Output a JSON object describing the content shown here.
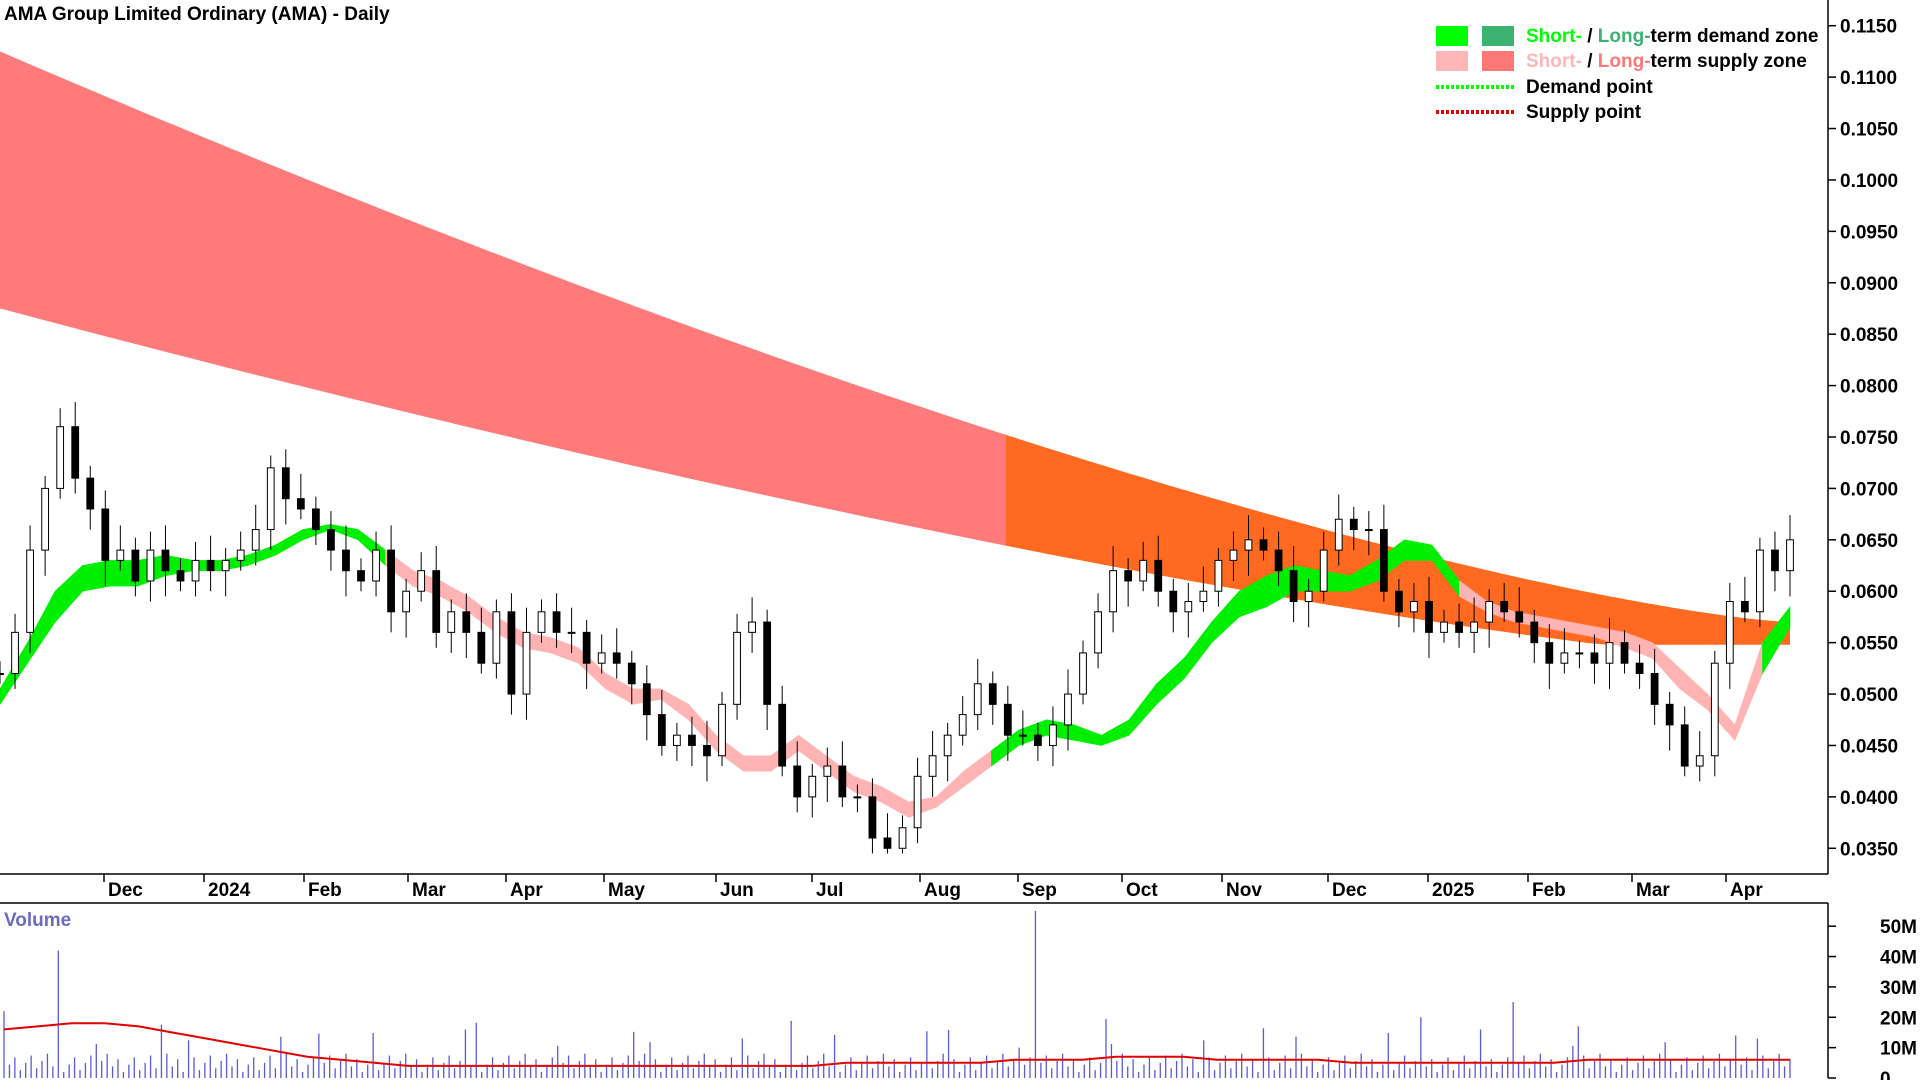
{
  "chart_data": {
    "type": "candlestick",
    "title": "AMA Group Limited Ordinary (AMA) - Daily",
    "price_axis": {
      "ylim": [
        0.0325,
        0.1175
      ],
      "ticks": [
        "0.1150",
        "0.1100",
        "0.1050",
        "0.1000",
        "0.0950",
        "0.0900",
        "0.0850",
        "0.0800",
        "0.0750",
        "0.0700",
        "0.0650",
        "0.0600",
        "0.0550",
        "0.0500",
        "0.0450",
        "0.0400",
        "0.0350"
      ]
    },
    "x_axis": {
      "ticks": [
        "Dec",
        "2024",
        "Feb",
        "Mar",
        "Apr",
        "May",
        "Jun",
        "Jul",
        "Aug",
        "Sep",
        "Oct",
        "Nov",
        "Dec",
        "2025",
        "Feb",
        "Mar",
        "Apr"
      ]
    },
    "legend": {
      "placement": "top-right",
      "rows": [
        {
          "prefix": "Short-",
          "sep": " / ",
          "mid": "Long-",
          "suffix": "term demand zone",
          "colors": [
            "#00ff00",
            "#3cb371"
          ]
        },
        {
          "prefix": "Short-",
          "sep": " / ",
          "mid": "Long-",
          "suffix": "term supply zone",
          "colors": [
            "#ffb6b6",
            "#ff7777"
          ]
        },
        {
          "text": "Demand point",
          "color": "#00ff00"
        },
        {
          "text": "Supply point",
          "color": "#e00000"
        }
      ]
    },
    "long_term_zone": {
      "upper_start": 0.1125,
      "upper_end": 0.057,
      "lower_start": 0.0875,
      "lower_end": 0.0548,
      "cross_to_demand_index": 0.56
    },
    "series": [
      {
        "name": "price",
        "close": [
          0.052,
          0.056,
          0.064,
          0.07,
          0.076,
          0.071,
          0.068,
          0.063,
          0.064,
          0.061,
          0.064,
          0.062,
          0.061,
          0.063,
          0.062,
          0.063,
          0.064,
          0.066,
          0.072,
          0.069,
          0.068,
          0.066,
          0.064,
          0.062,
          0.061,
          0.064,
          0.058,
          0.06,
          0.062,
          0.056,
          0.058,
          0.056,
          0.053,
          0.058,
          0.05,
          0.056,
          0.058,
          0.056,
          0.056,
          0.053,
          0.054,
          0.053,
          0.051,
          0.048,
          0.045,
          0.046,
          0.045,
          0.044,
          0.049,
          0.056,
          0.057,
          0.049,
          0.043,
          0.04,
          0.042,
          0.043,
          0.04,
          0.04,
          0.036,
          0.035,
          0.037,
          0.042,
          0.044,
          0.046,
          0.048,
          0.051,
          0.049,
          0.046,
          0.046,
          0.045,
          0.047,
          0.05,
          0.054,
          0.058,
          0.062,
          0.061,
          0.063,
          0.06,
          0.058,
          0.059,
          0.06,
          0.063,
          0.064,
          0.065,
          0.064,
          0.062,
          0.059,
          0.06,
          0.064,
          0.067,
          0.066,
          0.066,
          0.06,
          0.058,
          0.059,
          0.056,
          0.057,
          0.056,
          0.057,
          0.059,
          0.058,
          0.057,
          0.055,
          0.053,
          0.054,
          0.054,
          0.053,
          0.055,
          0.053,
          0.052,
          0.049,
          0.047,
          0.043,
          0.044,
          0.053,
          0.059,
          0.058,
          0.064,
          0.062,
          0.065
        ],
        "min_wick": 0.0345,
        "max_wick": 0.0825
      },
      {
        "name": "Short-term zone",
        "upper": [
          0.0505,
          0.055,
          0.06,
          0.0625,
          0.063,
          0.063,
          0.0635,
          0.063,
          0.063,
          0.0635,
          0.0645,
          0.066,
          0.0665,
          0.066,
          0.064,
          0.062,
          0.061,
          0.0595,
          0.0575,
          0.056,
          0.0555,
          0.0545,
          0.052,
          0.0505,
          0.0505,
          0.049,
          0.046,
          0.044,
          0.044,
          0.046,
          0.044,
          0.042,
          0.041,
          0.0395,
          0.04,
          0.0425,
          0.0445,
          0.0465,
          0.0475,
          0.047,
          0.046,
          0.0475,
          0.051,
          0.0535,
          0.057,
          0.06,
          0.0615,
          0.0625,
          0.062,
          0.0615,
          0.063,
          0.065,
          0.0645,
          0.061,
          0.059,
          0.058,
          0.0575,
          0.057,
          0.0565,
          0.056,
          0.055,
          0.0525,
          0.05,
          0.047,
          0.055,
          0.0585
        ],
        "lower": [
          0.049,
          0.053,
          0.057,
          0.06,
          0.0605,
          0.0605,
          0.0615,
          0.062,
          0.062,
          0.0625,
          0.0635,
          0.065,
          0.066,
          0.065,
          0.0625,
          0.0605,
          0.0595,
          0.058,
          0.056,
          0.0545,
          0.054,
          0.053,
          0.0505,
          0.049,
          0.0495,
          0.0475,
          0.0445,
          0.0425,
          0.0425,
          0.0445,
          0.0425,
          0.0405,
          0.0395,
          0.038,
          0.039,
          0.041,
          0.043,
          0.045,
          0.046,
          0.0455,
          0.045,
          0.046,
          0.049,
          0.0515,
          0.055,
          0.0575,
          0.0585,
          0.06,
          0.06,
          0.06,
          0.061,
          0.063,
          0.063,
          0.0595,
          0.058,
          0.057,
          0.0565,
          0.056,
          0.0555,
          0.0545,
          0.0535,
          0.0505,
          0.0485,
          0.0455,
          0.052,
          0.0565
        ],
        "demand_flags": [
          1,
          1,
          1,
          1,
          1,
          1,
          1,
          1,
          1,
          1,
          1,
          1,
          1,
          1,
          0,
          0,
          0,
          0,
          0,
          0,
          0,
          0,
          0,
          0,
          0,
          0,
          0,
          0,
          0,
          0,
          0,
          0,
          0,
          0,
          0,
          0,
          1,
          1,
          1,
          1,
          1,
          1,
          1,
          1,
          1,
          1,
          1,
          1,
          1,
          1,
          1,
          1,
          1,
          0,
          0,
          0,
          0,
          0,
          0,
          0,
          0,
          0,
          0,
          0,
          1,
          1
        ]
      },
      {
        "name": "Volume",
        "max_label": "50M",
        "avg": [
          16,
          17,
          18,
          18,
          17,
          15,
          13,
          11,
          9,
          7,
          6,
          5,
          4,
          4,
          4,
          4,
          4,
          4,
          4,
          4,
          4,
          4,
          4,
          4,
          4,
          5,
          5,
          5,
          5,
          5,
          6,
          6,
          6,
          7,
          7,
          7,
          6,
          6,
          6,
          6,
          5,
          5,
          5,
          5,
          5,
          5,
          5,
          6,
          6,
          6,
          6,
          6,
          6,
          6
        ]
      }
    ],
    "volume_axis": {
      "label": "Volume",
      "ticks": [
        "50M",
        "40M",
        "30M",
        "20M",
        "10M",
        "0"
      ],
      "ylim": [
        0,
        55
      ]
    }
  }
}
